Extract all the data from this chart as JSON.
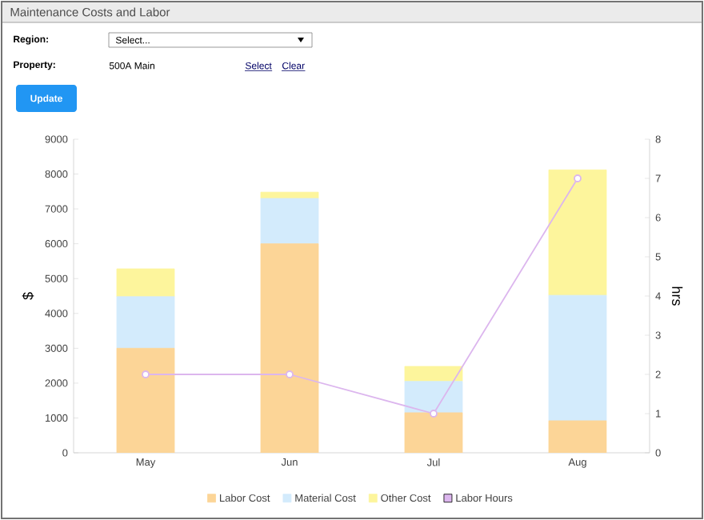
{
  "chart_data": {
    "type": "bar",
    "title": "Maintenance Costs and Labor",
    "annotations": [
      "Region:",
      "Select...",
      "Property:",
      "500A Main",
      "Select",
      "Clear",
      "Update"
    ],
    "categories": [
      "May",
      "Jun",
      "Jul",
      "Aug"
    ],
    "stacked": true,
    "series": [
      {
        "name": "Labor Cost",
        "color": "#fcd597",
        "values": [
          3000,
          6000,
          1150,
          920
        ]
      },
      {
        "name": "Material Cost",
        "color": "#d3ebfc",
        "values": [
          1480,
          1300,
          900,
          3600
        ]
      },
      {
        "name": "Other Cost",
        "color": "#fdf59c",
        "values": [
          800,
          180,
          430,
          3600
        ]
      },
      {
        "name": "Labor Hours",
        "type": "line",
        "axis": "y2",
        "marker": "circle",
        "color": "#dcb6ee",
        "values": [
          2,
          2,
          1,
          7
        ]
      }
    ],
    "ylabel": "$",
    "y2label": "hrs",
    "ylim": [
      0,
      9000
    ],
    "yticks": [
      0,
      1000,
      2000,
      3000,
      4000,
      5000,
      6000,
      7000,
      8000,
      9000
    ],
    "y2lim": [
      0,
      8
    ],
    "y2ticks": [
      0,
      1,
      2,
      3,
      4,
      5,
      6,
      7,
      8
    ],
    "legend": "bottom"
  }
}
